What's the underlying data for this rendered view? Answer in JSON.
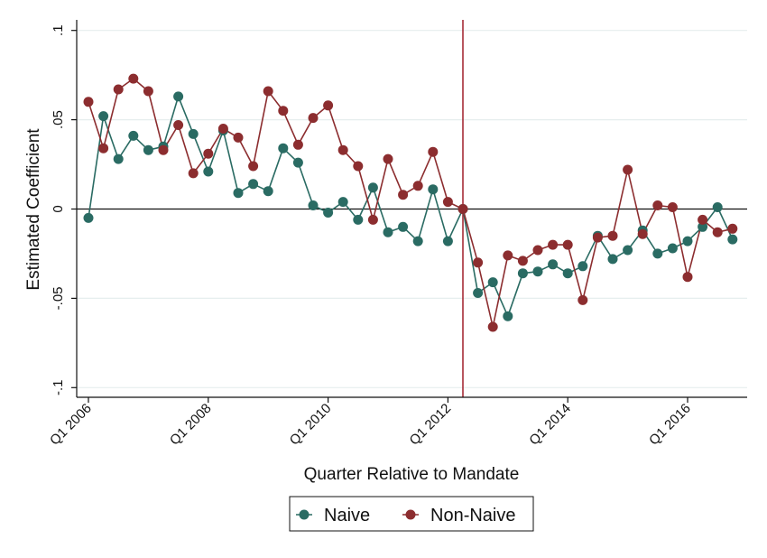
{
  "chart_data": {
    "type": "line",
    "xlabel": "Quarter Relative to Mandate",
    "ylabel": "Estimated Coefficient",
    "x_tick_labels": [
      "Q1 2006",
      "Q1 2008",
      "Q1 2010",
      "Q1 2012",
      "Q1 2014",
      "Q1 2016"
    ],
    "y_tick_labels": [
      ".1",
      ".05",
      "0",
      "-.05",
      "-.1"
    ],
    "y_ticks": [
      0.1,
      0.05,
      0,
      -0.05,
      -0.1
    ],
    "ylim": [
      -0.105,
      0.107
    ],
    "xlim": [
      "Q1 2006",
      "Q4 2016"
    ],
    "grid": true,
    "mandate_line_x": "Q2 2012",
    "zero_line": true,
    "legend_position": "bottom",
    "x": [
      "Q1 2006",
      "Q2 2006",
      "Q3 2006",
      "Q4 2006",
      "Q1 2007",
      "Q2 2007",
      "Q3 2007",
      "Q4 2007",
      "Q1 2008",
      "Q2 2008",
      "Q3 2008",
      "Q4 2008",
      "Q1 2009",
      "Q2 2009",
      "Q3 2009",
      "Q4 2009",
      "Q1 2010",
      "Q2 2010",
      "Q3 2010",
      "Q4 2010",
      "Q1 2011",
      "Q2 2011",
      "Q3 2011",
      "Q4 2011",
      "Q1 2012",
      "Q2 2012",
      "Q3 2012",
      "Q4 2012",
      "Q1 2013",
      "Q2 2013",
      "Q3 2013",
      "Q4 2013",
      "Q1 2014",
      "Q2 2014",
      "Q3 2014",
      "Q4 2014",
      "Q1 2015",
      "Q2 2015",
      "Q3 2015",
      "Q4 2015",
      "Q1 2016",
      "Q2 2016",
      "Q3 2016",
      "Q4 2016"
    ],
    "series": [
      {
        "name": "Naive",
        "color": "#2a6b63",
        "values": [
          -0.005,
          0.052,
          0.028,
          0.041,
          0.033,
          0.035,
          0.063,
          0.042,
          0.021,
          0.044,
          0.009,
          0.014,
          0.01,
          0.034,
          0.026,
          0.002,
          -0.002,
          0.004,
          -0.006,
          0.012,
          -0.013,
          -0.01,
          -0.018,
          0.011,
          -0.018,
          0.0,
          -0.047,
          -0.041,
          -0.06,
          -0.036,
          -0.035,
          -0.031,
          -0.036,
          -0.032,
          -0.015,
          -0.028,
          -0.023,
          -0.012,
          -0.025,
          -0.022,
          -0.018,
          -0.01,
          0.001,
          -0.017
        ]
      },
      {
        "name": "Non-Naive",
        "color": "#8c2d2f",
        "values": [
          0.06,
          0.034,
          0.067,
          0.073,
          0.066,
          0.033,
          0.047,
          0.02,
          0.031,
          0.045,
          0.04,
          0.024,
          0.066,
          0.055,
          0.036,
          0.051,
          0.058,
          0.033,
          0.024,
          -0.006,
          0.028,
          0.008,
          0.013,
          0.032,
          0.004,
          0.0,
          -0.03,
          -0.066,
          -0.026,
          -0.029,
          -0.023,
          -0.02,
          -0.02,
          -0.051,
          -0.016,
          -0.015,
          0.022,
          -0.014,
          0.002,
          0.001,
          -0.038,
          -0.006,
          -0.013,
          -0.011
        ]
      }
    ]
  },
  "legend": {
    "items": [
      {
        "label": "Naive",
        "color": "#2a6b63"
      },
      {
        "label": "Non-Naive",
        "color": "#8c2d2f"
      }
    ]
  }
}
